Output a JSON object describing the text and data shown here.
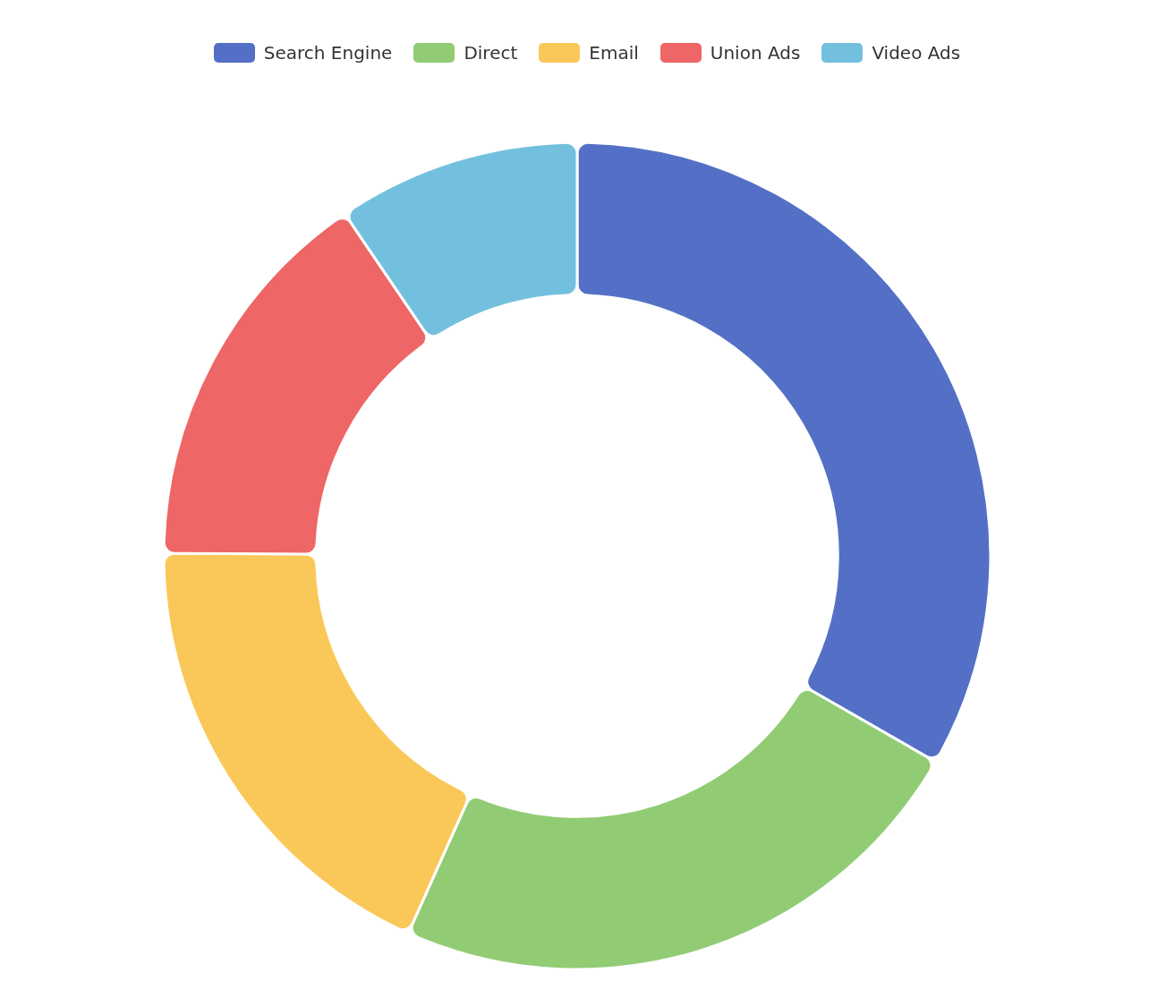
{
  "chart_data": {
    "type": "donut",
    "categories": [
      "Search Engine",
      "Direct",
      "Email",
      "Union Ads",
      "Video Ads"
    ],
    "values": [
      33.3,
      23.4,
      18.4,
      15.4,
      9.5
    ],
    "colors": [
      "#5470c6",
      "#91cc75",
      "#fac858",
      "#ee6666",
      "#73c0de"
    ],
    "legend": "top"
  }
}
